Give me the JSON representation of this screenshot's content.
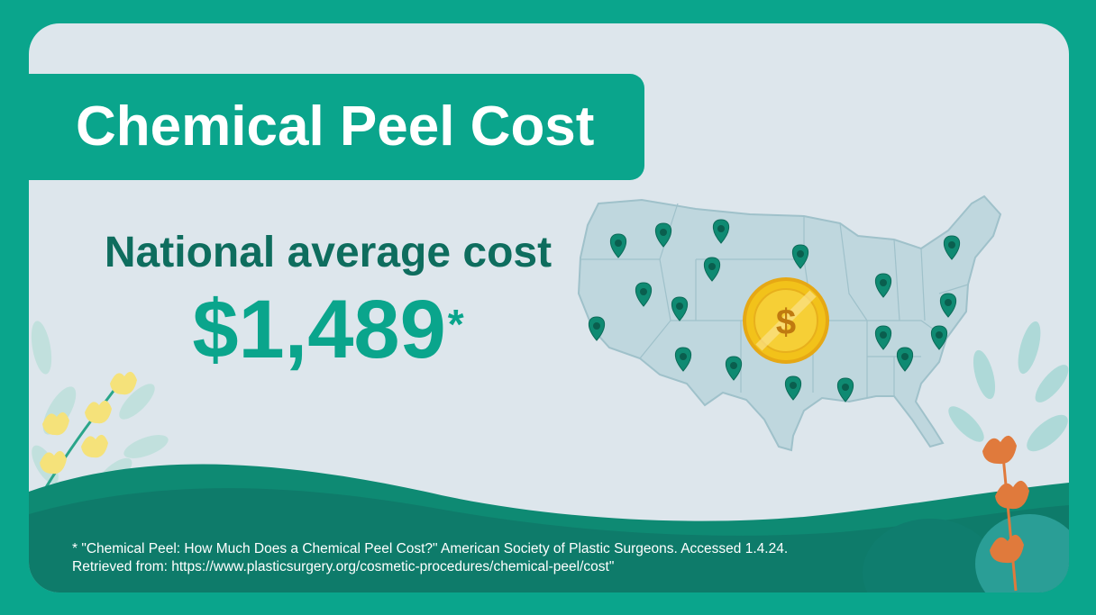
{
  "title": "Chemical Peel Cost",
  "subtitle": "National average cost",
  "price": {
    "amount": "$1,489",
    "marker": "*"
  },
  "coin_symbol": "$",
  "footnote": {
    "line1": "* \"Chemical Peel: How Much Does a Chemical Peel Cost?\" American Society of Plastic Surgeons. Accessed 1.4.24.",
    "line2": "Retrieved from: https://www.plasticsurgery.org/cosmetic-procedures/chemical-peel/cost\""
  },
  "colors": {
    "brand_teal": "#0aa58c",
    "dark_teal": "#0e6d5e",
    "card_bg": "#dde6ec",
    "map_fill": "#bfd7de",
    "pin": "#0f8a72",
    "coin": "#f2c21a",
    "flower_yellow": "#f5e27a",
    "flower_orange": "#e07a3c"
  },
  "icons": [
    "location-pin-icon",
    "dollar-coin-icon",
    "us-map-illustration",
    "leaf-decoration",
    "flower-decoration"
  ]
}
